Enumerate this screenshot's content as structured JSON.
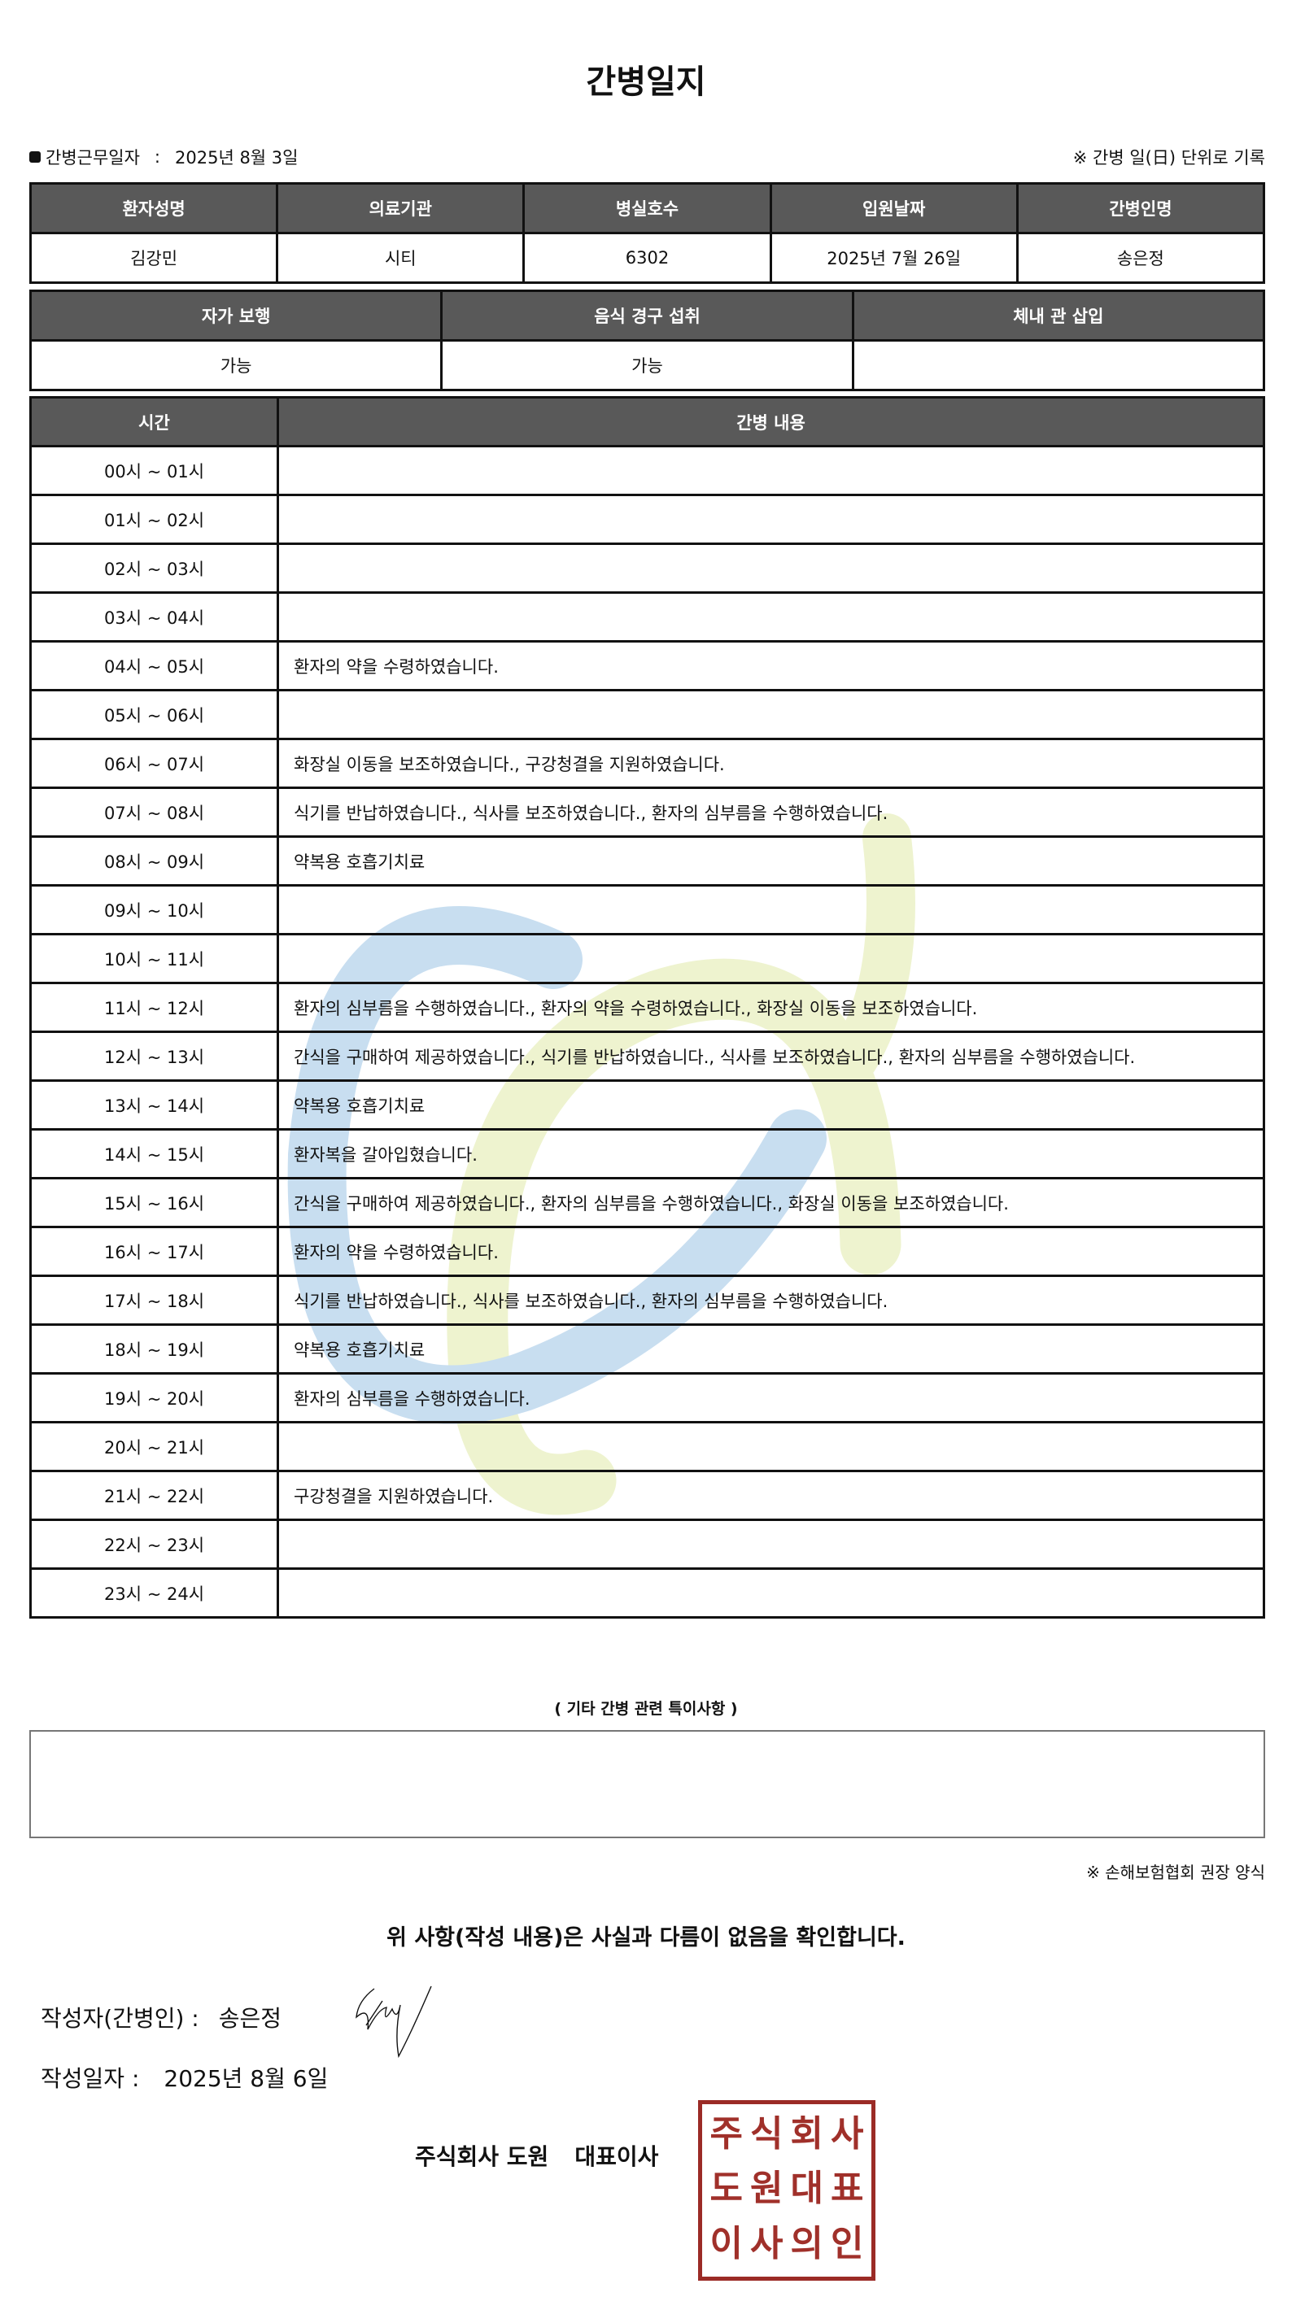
{
  "title": "간병일지",
  "work_date_label": "간병근무일자",
  "work_date_sep": ":",
  "work_date": "2025년 8월 3일",
  "record_note": "※ 간병 일(日) 단위로 기록",
  "patient_table": {
    "headers": [
      "환자성명",
      "의료기관",
      "병실호수",
      "입원날짜",
      "간병인명"
    ],
    "values": [
      "김강민",
      "시티",
      "6302",
      "2025년 7월 26일",
      "송은정"
    ]
  },
  "status_table": {
    "headers": [
      "자가 보행",
      "음식 경구 섭취",
      "체내 관 삽입"
    ],
    "values": [
      "가능",
      "가능",
      ""
    ]
  },
  "log_table": {
    "headers": [
      "시간",
      "간병 내용"
    ],
    "rows": [
      {
        "time": "00시 ~ 01시",
        "content": ""
      },
      {
        "time": "01시 ~ 02시",
        "content": ""
      },
      {
        "time": "02시 ~ 03시",
        "content": ""
      },
      {
        "time": "03시 ~ 04시",
        "content": ""
      },
      {
        "time": "04시 ~ 05시",
        "content": "환자의 약을 수령하였습니다."
      },
      {
        "time": "05시 ~ 06시",
        "content": ""
      },
      {
        "time": "06시 ~ 07시",
        "content": "화장실 이동을 보조하였습니다., 구강청결을 지원하였습니다."
      },
      {
        "time": "07시 ~ 08시",
        "content": "식기를 반납하였습니다., 식사를 보조하였습니다., 환자의 심부름을 수행하였습니다."
      },
      {
        "time": "08시 ~ 09시",
        "content": "약복용 호흡기치료"
      },
      {
        "time": "09시 ~ 10시",
        "content": ""
      },
      {
        "time": "10시 ~ 11시",
        "content": ""
      },
      {
        "time": "11시 ~ 12시",
        "content": "환자의 심부름을 수행하였습니다., 환자의 약을 수령하였습니다., 화장실 이동을 보조하였습니다."
      },
      {
        "time": "12시 ~ 13시",
        "content": "간식을 구매하여 제공하였습니다., 식기를 반납하였습니다., 식사를 보조하였습니다., 환자의 심부름을 수행하였습니다."
      },
      {
        "time": "13시 ~ 14시",
        "content": "약복용 호흡기치료"
      },
      {
        "time": "14시 ~ 15시",
        "content": "환자복을 갈아입혔습니다."
      },
      {
        "time": "15시 ~ 16시",
        "content": "간식을 구매하여 제공하였습니다., 환자의 심부름을 수행하였습니다., 화장실 이동을 보조하였습니다."
      },
      {
        "time": "16시 ~ 17시",
        "content": "환자의 약을 수령하였습니다."
      },
      {
        "time": "17시 ~ 18시",
        "content": "식기를 반납하였습니다., 식사를 보조하였습니다., 환자의 심부름을 수행하였습니다."
      },
      {
        "time": "18시 ~ 19시",
        "content": "약복용 호흡기치료"
      },
      {
        "time": "19시 ~ 20시",
        "content": "환자의 심부름을 수행하였습니다."
      },
      {
        "time": "20시 ~ 21시",
        "content": ""
      },
      {
        "time": "21시 ~ 22시",
        "content": "구강청결을 지원하였습니다."
      },
      {
        "time": "22시 ~ 23시",
        "content": ""
      },
      {
        "time": "23시 ~ 24시",
        "content": ""
      }
    ]
  },
  "notes_title": "( 기타 간병 관련 특이사항 )",
  "notes_content": "",
  "form_note": "※ 손해보험협회 권장 양식",
  "confirmation": "위 사항(작성 내용)은 사실과 다름이 없음을 확인합니다.",
  "writer_label": "작성자(간병인) :",
  "writer_name": "송은정",
  "written_date_label": "작성일자 :",
  "written_date": "2025년 8월 6일",
  "company_name": "주식회사 도원",
  "company_role": "대표이사",
  "stamp_text": "주식회사도원대표이사의인",
  "colors": {
    "header_bg": "#595959",
    "stamp": "#a0302a",
    "watermark_blue": "#c8def0",
    "watermark_yellow": "#eef3cf"
  }
}
